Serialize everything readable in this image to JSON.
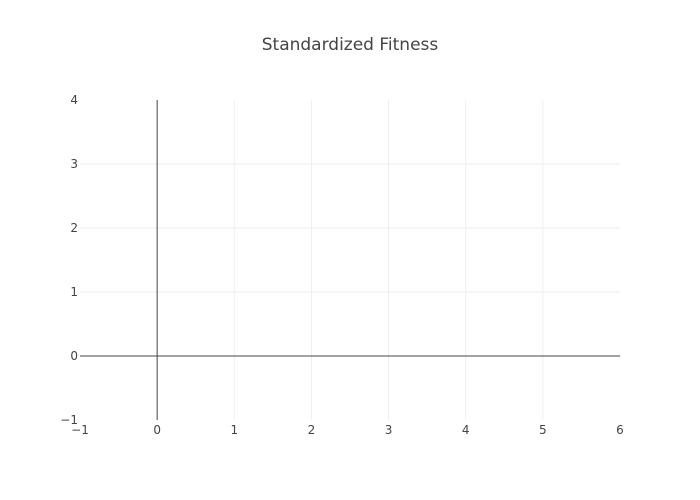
{
  "chart_data": {
    "type": "line",
    "title": "Standardized Fitness",
    "xlabel": "",
    "ylabel": "",
    "xlim": [
      -1,
      6
    ],
    "ylim": [
      -1,
      4
    ],
    "x_ticks": [
      -1,
      0,
      1,
      2,
      3,
      4,
      5,
      6
    ],
    "y_ticks": [
      -1,
      0,
      1,
      2,
      3,
      4
    ],
    "x_tick_labels": [
      "−1",
      "0",
      "1",
      "2",
      "3",
      "4",
      "5",
      "6"
    ],
    "y_tick_labels": [
      "−1",
      "0",
      "1",
      "2",
      "3",
      "4"
    ],
    "grid": true,
    "zero_lines": true,
    "series": []
  },
  "colors": {
    "grid": "#eeeeee",
    "zeroline": "#444444",
    "text": "#444444",
    "background": "#ffffff"
  }
}
